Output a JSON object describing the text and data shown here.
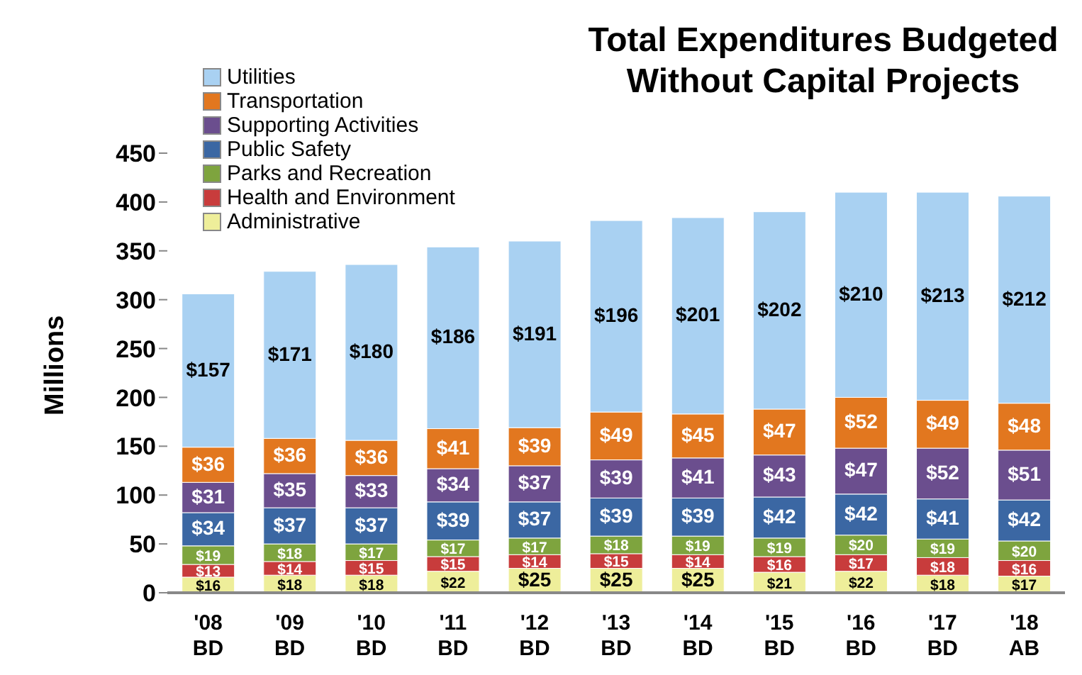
{
  "chart_data": {
    "type": "bar",
    "stacked": true,
    "title": "Total Expenditures Budgeted Without Capital Projects",
    "ylabel": "Millions",
    "categories": [
      "'08 BD",
      "'09 BD",
      "'10 BD",
      "'11 BD",
      "'12 BD",
      "'13 BD",
      "'14 BD",
      "'15 BD",
      "'16 BD",
      "'17 BD",
      "'18 AB"
    ],
    "ylim": [
      0,
      450
    ],
    "yticks": [
      0,
      50,
      100,
      150,
      200,
      250,
      300,
      350,
      400,
      450
    ],
    "grid": false,
    "legend": "top left",
    "series": [
      {
        "name": "Administrative",
        "color": "#eeee9a",
        "values": [
          16,
          18,
          18,
          22,
          25,
          25,
          25,
          21,
          22,
          18,
          17
        ],
        "value_labels": [
          "$16",
          "$18",
          "$18",
          "$22",
          "$25",
          "$25",
          "$25",
          "$21",
          "$22",
          "$18",
          "$17"
        ]
      },
      {
        "name": "Health and Environment",
        "color": "#c83c3c",
        "values": [
          13,
          14,
          15,
          15,
          14,
          15,
          14,
          16,
          17,
          18,
          16
        ],
        "value_labels": [
          "$13",
          "$14",
          "$15",
          "$15",
          "$14",
          "$15",
          "$14",
          "$16",
          "$17",
          "$18",
          "$16"
        ]
      },
      {
        "name": "Parks and Recreation",
        "color": "#7ea43e",
        "values": [
          19,
          18,
          17,
          17,
          17,
          18,
          19,
          19,
          20,
          19,
          20
        ],
        "value_labels": [
          "$19",
          "$18",
          "$17",
          "$17",
          "$17",
          "$18",
          "$19",
          "$19",
          "$20",
          "$19",
          "$20"
        ]
      },
      {
        "name": "Public Safety",
        "color": "#3b67a3",
        "values": [
          34,
          37,
          37,
          39,
          37,
          39,
          39,
          42,
          42,
          41,
          42
        ],
        "value_labels": [
          "$34",
          "$37",
          "$37",
          "$39",
          "$37",
          "$39",
          "$39",
          "$42",
          "$42",
          "$41",
          "$42"
        ]
      },
      {
        "name": "Supporting Activities",
        "color": "#6b4e8e",
        "values": [
          31,
          35,
          33,
          34,
          37,
          39,
          41,
          43,
          47,
          52,
          51
        ],
        "value_labels": [
          "$31",
          "$35",
          "$33",
          "$34",
          "$37",
          "$39",
          "$41",
          "$43",
          "$47",
          "$52",
          "$51"
        ]
      },
      {
        "name": "Transportation",
        "color": "#e2771f",
        "values": [
          36,
          36,
          36,
          41,
          39,
          49,
          45,
          47,
          52,
          49,
          48
        ],
        "value_labels": [
          "$36",
          "$36",
          "$36",
          "$41",
          "$39",
          "$49",
          "$45",
          "$47",
          "$52",
          "$49",
          "$48"
        ]
      },
      {
        "name": "Utilities",
        "color": "#a9d1f2",
        "values": [
          157,
          171,
          180,
          186,
          191,
          196,
          201,
          202,
          210,
          213,
          212
        ],
        "value_labels": [
          "$157",
          "$171",
          "$180",
          "$186",
          "$191",
          "$196",
          "$201",
          "$202",
          "$210",
          "$213",
          "$212"
        ]
      }
    ]
  }
}
